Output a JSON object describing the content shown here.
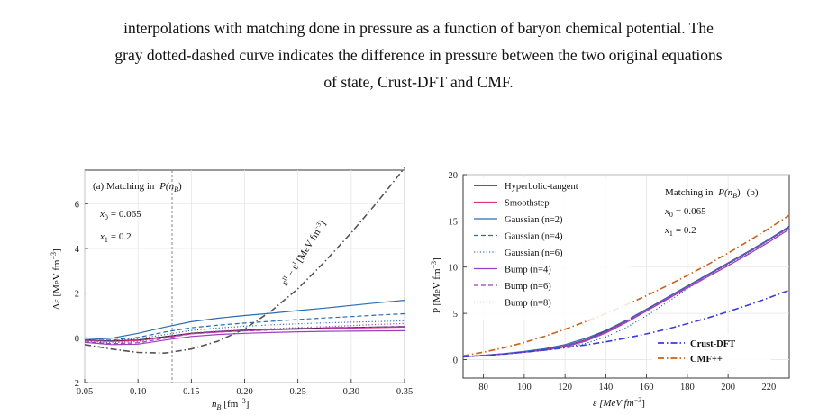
{
  "caption": {
    "line1": "interpolations with matching done in pressure as a function of baryon chemical potential. The",
    "line2": "gray dotted-dashed curve indicates the difference in pressure between the two original equations",
    "line3": "of state, Crust-DFT and CMF."
  },
  "colors": {
    "black": "#000000",
    "magenta": "#e0307a",
    "blue": "#2a6db0",
    "purple": "#9b3fbf",
    "gray": "#555555",
    "crust": "#3b3bd6",
    "cmf": "#c8621a",
    "vline": "#888888"
  },
  "chart_data": [
    {
      "type": "line",
      "title": "(a) Matching in P(n_B)",
      "panel_label": "(a) Matching in",
      "panel_math": "P(n",
      "panel_math_sub": "B",
      "panel_math_end": ")",
      "annot_x0": "x",
      "annot_x0_sub": "0",
      "annot_x0_val": "= 0.065",
      "annot_x1": "x",
      "annot_x1_sub": "1",
      "annot_x1_val": "= 0.2",
      "xlabel": "n",
      "xlabel_sub": "B",
      "xlabel_unit": "[fm",
      "xlabel_sup": "−3",
      "xlabel_end": "]",
      "ylabel": "Δε [MeV fm",
      "ylabel_sup": "−3",
      "ylabel_end": "]",
      "xlim": [
        0.05,
        0.35
      ],
      "ylim": [
        -2,
        7.5
      ],
      "xticks": [
        "0.05",
        "0.10",
        "0.15",
        "0.20",
        "0.25",
        "0.30",
        "0.35"
      ],
      "xtick_values": [
        0.05,
        0.1,
        0.15,
        0.2,
        0.25,
        0.3,
        0.35
      ],
      "yticks": [
        "−2",
        "0",
        "2",
        "4",
        "6"
      ],
      "ytick_values": [
        -2,
        0,
        2,
        4,
        6
      ],
      "vline_x": 0.132,
      "diff_label": "ε",
      "diff_label_sup1": "II",
      "diff_label_mid": " − ε",
      "diff_label_sup2": "I",
      "diff_label_end": " [MeV fm",
      "diff_label_sup3": "−3",
      "diff_label_end2": "]",
      "x": [
        0.05,
        0.075,
        0.1,
        0.125,
        0.15,
        0.175,
        0.2,
        0.225,
        0.25,
        0.275,
        0.3,
        0.325,
        0.35
      ],
      "series": [
        {
          "color": "black",
          "dash": "solid",
          "values": [
            -0.1,
            -0.14,
            -0.1,
            0.05,
            0.2,
            0.28,
            0.34,
            0.38,
            0.41,
            0.44,
            0.46,
            0.48,
            0.5
          ]
        },
        {
          "color": "magenta",
          "dash": "solid",
          "values": [
            -0.12,
            -0.16,
            -0.12,
            0.02,
            0.18,
            0.26,
            0.32,
            0.36,
            0.39,
            0.42,
            0.44,
            0.46,
            0.48
          ]
        },
        {
          "color": "blue",
          "dash": "solid",
          "values": [
            -0.08,
            -0.02,
            0.2,
            0.48,
            0.72,
            0.88,
            1.0,
            1.1,
            1.22,
            1.33,
            1.45,
            1.57,
            1.68
          ]
        },
        {
          "color": "blue",
          "dash": "dashed",
          "values": [
            -0.1,
            -0.1,
            0.02,
            0.26,
            0.45,
            0.57,
            0.66,
            0.74,
            0.82,
            0.89,
            0.95,
            1.02,
            1.08
          ]
        },
        {
          "color": "blue",
          "dash": "dotted",
          "values": [
            -0.1,
            -0.12,
            -0.04,
            0.14,
            0.33,
            0.44,
            0.52,
            0.58,
            0.63,
            0.67,
            0.7,
            0.73,
            0.76
          ]
        },
        {
          "color": "purple",
          "dash": "solid",
          "values": [
            -0.2,
            -0.3,
            -0.28,
            -0.1,
            0.06,
            0.15,
            0.2,
            0.24,
            0.27,
            0.29,
            0.3,
            0.31,
            0.32
          ]
        },
        {
          "color": "purple",
          "dash": "dashed",
          "values": [
            -0.18,
            -0.26,
            -0.22,
            -0.02,
            0.18,
            0.26,
            0.31,
            0.35,
            0.39,
            0.42,
            0.45,
            0.48,
            0.5
          ]
        },
        {
          "color": "purple",
          "dash": "dotted",
          "values": [
            -0.14,
            -0.22,
            -0.16,
            0.04,
            0.22,
            0.3,
            0.36,
            0.41,
            0.46,
            0.5,
            0.55,
            0.6,
            0.64
          ]
        },
        {
          "color": "gray",
          "dash": "dashdot",
          "values": [
            -0.3,
            -0.5,
            -0.65,
            -0.68,
            -0.5,
            -0.15,
            0.4,
            1.2,
            2.2,
            3.4,
            4.7,
            6.1,
            7.6
          ]
        }
      ]
    },
    {
      "type": "line",
      "panel_label": "Matching in",
      "panel_math": "P(n",
      "panel_math_sub": "B",
      "panel_math_end": ")",
      "panel_tag": "(b)",
      "annot_x0": "x",
      "annot_x0_sub": "0",
      "annot_x0_val": "= 0.065",
      "annot_x1": "x",
      "annot_x1_sub": "1",
      "annot_x1_val": "= 0.2",
      "xlabel": "ε [MeV fm",
      "xlabel_sup": "−3",
      "xlabel_end": "]",
      "ylabel": "P [MeV fm",
      "ylabel_sup": "−3",
      "ylabel_end": "]",
      "xlim": [
        70,
        230
      ],
      "ylim": [
        -2,
        20
      ],
      "xticks": [
        "80",
        "100",
        "120",
        "140",
        "160",
        "180",
        "200",
        "220"
      ],
      "xtick_values": [
        80,
        100,
        120,
        140,
        160,
        180,
        200,
        220
      ],
      "yticks": [
        "0",
        "5",
        "10",
        "15",
        "20"
      ],
      "ytick_values": [
        0,
        5,
        10,
        15,
        20
      ],
      "legend_entries": [
        "Hyperbolic-tangent",
        "Smoothstep",
        "Gaussian (n=2)",
        "Gaussian (n=4)",
        "Gaussian (n=6)",
        "Bump (n=4)",
        "Bump (n=6)",
        "Bump (n=8)"
      ],
      "legend2_entries": [
        "Crust-DFT",
        "CMF++"
      ],
      "x": [
        70,
        80,
        90,
        100,
        110,
        120,
        130,
        140,
        150,
        160,
        170,
        180,
        190,
        200,
        210,
        220,
        230
      ],
      "series": [
        {
          "name": "Hyperbolic-tangent",
          "color": "black",
          "dash": "solid",
          "values": [
            0.3,
            0.45,
            0.62,
            0.82,
            1.08,
            1.48,
            2.12,
            3.05,
            4.2,
            5.45,
            6.7,
            7.95,
            9.2,
            10.45,
            11.7,
            13.0,
            14.4
          ]
        },
        {
          "name": "Smoothstep",
          "color": "magenta",
          "dash": "solid",
          "values": [
            0.3,
            0.45,
            0.62,
            0.82,
            1.06,
            1.45,
            2.08,
            3.0,
            4.15,
            5.4,
            6.65,
            7.9,
            9.15,
            10.4,
            11.65,
            12.95,
            14.35
          ]
        },
        {
          "name": "Gaussian (n=2)",
          "color": "blue",
          "dash": "solid",
          "values": [
            0.3,
            0.46,
            0.65,
            0.88,
            1.18,
            1.62,
            2.28,
            3.15,
            4.25,
            5.45,
            6.7,
            7.95,
            9.2,
            10.45,
            11.7,
            13.0,
            14.4
          ]
        },
        {
          "name": "Gaussian (n=4)",
          "color": "blue",
          "dash": "dashed",
          "values": [
            0.3,
            0.45,
            0.62,
            0.84,
            1.1,
            1.5,
            2.12,
            2.98,
            4.05,
            5.3,
            6.6,
            7.9,
            9.15,
            10.4,
            11.65,
            12.95,
            14.35
          ]
        },
        {
          "name": "Gaussian (n=6)",
          "color": "blue",
          "dash": "dotted",
          "values": [
            0.3,
            0.44,
            0.6,
            0.79,
            1.0,
            1.3,
            1.75,
            2.45,
            3.45,
            4.75,
            6.2,
            7.65,
            9.0,
            10.3,
            11.55,
            12.85,
            14.25
          ]
        },
        {
          "name": "Bump (n=4)",
          "color": "purple",
          "dash": "solid",
          "values": [
            0.3,
            0.44,
            0.6,
            0.79,
            1.02,
            1.38,
            1.98,
            2.88,
            4.0,
            5.25,
            6.5,
            7.75,
            8.95,
            10.15,
            11.4,
            12.7,
            14.1
          ]
        },
        {
          "name": "Bump (n=6)",
          "color": "purple",
          "dash": "dashed",
          "values": [
            0.3,
            0.44,
            0.6,
            0.8,
            1.04,
            1.42,
            2.04,
            2.95,
            4.1,
            5.35,
            6.6,
            7.85,
            9.1,
            10.35,
            11.6,
            12.9,
            14.3
          ]
        },
        {
          "name": "Bump (n=8)",
          "color": "purple",
          "dash": "dotted",
          "values": [
            0.3,
            0.45,
            0.61,
            0.81,
            1.05,
            1.44,
            2.06,
            2.98,
            4.12,
            5.38,
            6.63,
            7.88,
            9.13,
            10.38,
            11.63,
            12.93,
            14.33
          ]
        },
        {
          "name": "Crust-DFT",
          "color": "crust",
          "dash": "dashdot",
          "values": [
            0.3,
            0.43,
            0.6,
            0.8,
            1.02,
            1.28,
            1.58,
            1.92,
            2.32,
            2.78,
            3.3,
            3.88,
            4.5,
            5.18,
            5.9,
            6.68,
            7.5
          ]
        },
        {
          "name": "CMF++",
          "color": "cmf",
          "dash": "dashdot",
          "values": [
            0.4,
            0.8,
            1.28,
            1.85,
            2.52,
            3.28,
            4.1,
            4.98,
            5.92,
            6.92,
            7.98,
            9.1,
            10.28,
            11.52,
            12.82,
            14.18,
            15.6
          ]
        }
      ]
    }
  ]
}
